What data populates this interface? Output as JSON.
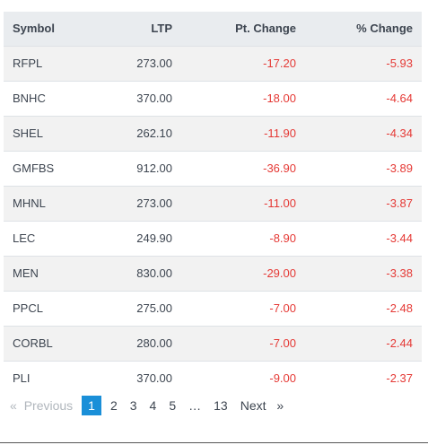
{
  "table": {
    "headers": {
      "symbol": "Symbol",
      "ltp": "LTP",
      "pt_change": "Pt. Change",
      "pct_change": "% Change"
    },
    "rows": [
      {
        "symbol": "RFPL",
        "ltp": "273.00",
        "pt_change": "-17.20",
        "pct_change": "-5.93"
      },
      {
        "symbol": "BNHC",
        "ltp": "370.00",
        "pt_change": "-18.00",
        "pct_change": "-4.64"
      },
      {
        "symbol": "SHEL",
        "ltp": "262.10",
        "pt_change": "-11.90",
        "pct_change": "-4.34"
      },
      {
        "symbol": "GMFBS",
        "ltp": "912.00",
        "pt_change": "-36.90",
        "pct_change": "-3.89"
      },
      {
        "symbol": "MHNL",
        "ltp": "273.00",
        "pt_change": "-11.00",
        "pct_change": "-3.87"
      },
      {
        "symbol": "LEC",
        "ltp": "249.90",
        "pt_change": "-8.90",
        "pct_change": "-3.44"
      },
      {
        "symbol": "MEN",
        "ltp": "830.00",
        "pt_change": "-29.00",
        "pct_change": "-3.38"
      },
      {
        "symbol": "PPCL",
        "ltp": "275.00",
        "pt_change": "-7.00",
        "pct_change": "-2.48"
      },
      {
        "symbol": "CORBL",
        "ltp": "280.00",
        "pt_change": "-7.00",
        "pct_change": "-2.44"
      },
      {
        "symbol": "PLI",
        "ltp": "370.00",
        "pt_change": "-9.00",
        "pct_change": "-2.37"
      }
    ]
  },
  "pagination": {
    "prev_arrow": "«",
    "prev_label": "Previous",
    "pages": [
      "1",
      "2",
      "3",
      "4",
      "5"
    ],
    "ellipsis": "…",
    "last_page": "13",
    "next_label": "Next",
    "next_arrow": "»",
    "current_page": "1"
  },
  "colors": {
    "negative": "#e53935",
    "active_page": "#1a8fd8",
    "header_bg": "#e9ecef",
    "striped_row_bg": "#f2f2f2"
  }
}
